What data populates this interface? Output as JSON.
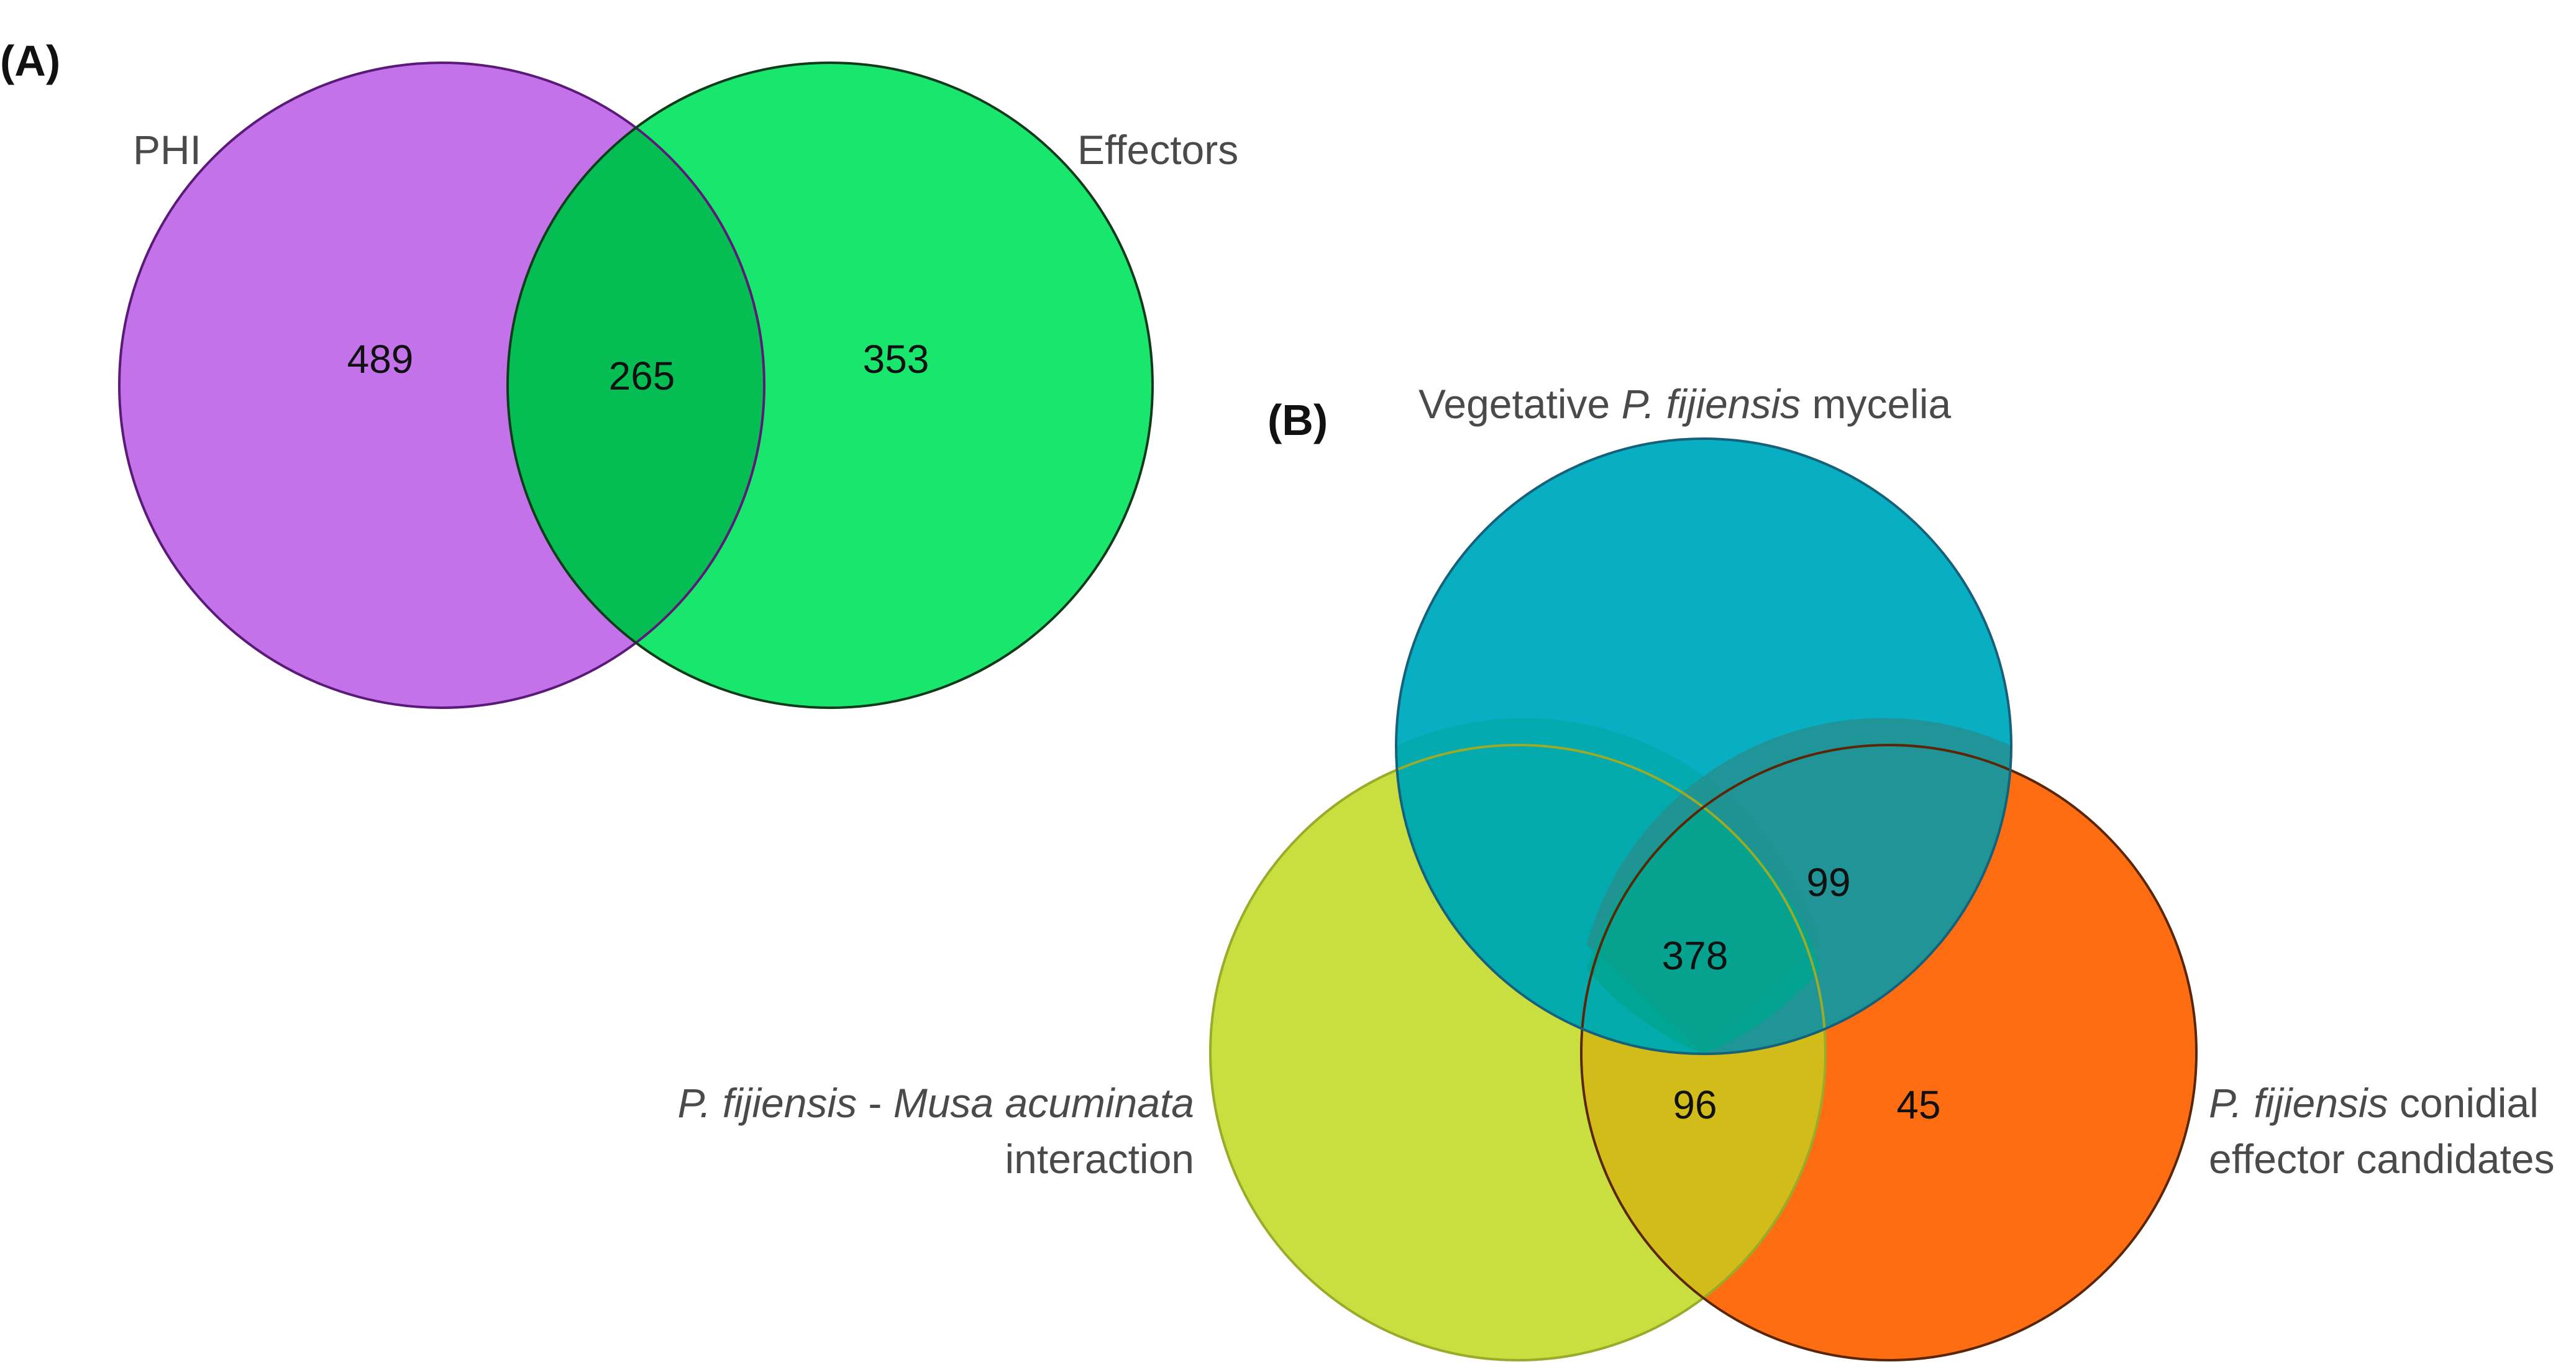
{
  "panel_a": {
    "label": "(A)",
    "sets": {
      "phi": {
        "name": "PHI",
        "color": "#c06ae9",
        "stroke": "#5b1a78"
      },
      "effectors": {
        "name": "Effectors",
        "color": "#00e35c",
        "stroke": "#0f3a1c"
      }
    },
    "counts": {
      "phi_only": "489",
      "both": "265",
      "effectors_only": "353"
    }
  },
  "panel_b": {
    "label": "(B)",
    "sets": {
      "vegetative": {
        "name_pre": "Vegetative ",
        "name_italic": "P. fijiensis",
        "name_post": " mycelia",
        "color": "#00acc1",
        "stroke": "#16607a"
      },
      "interaction": {
        "line1_italic_a": "P. fijiensis",
        "line1_sep": " - ",
        "line1_italic_b": "Musa acuminata",
        "line2": "interaction",
        "color": "#c9de3f",
        "stroke": "#9aab2a"
      },
      "conidial": {
        "line1_italic": "P. fijiensis",
        "line1_post": " conidial",
        "line2": "effector candidates",
        "color": "#ff6d12",
        "stroke": "#5a2606"
      }
    },
    "counts": {
      "vegetative_conidial": "99",
      "all_three": "378",
      "interaction_conidial": "96",
      "conidial_only": "45"
    }
  }
}
